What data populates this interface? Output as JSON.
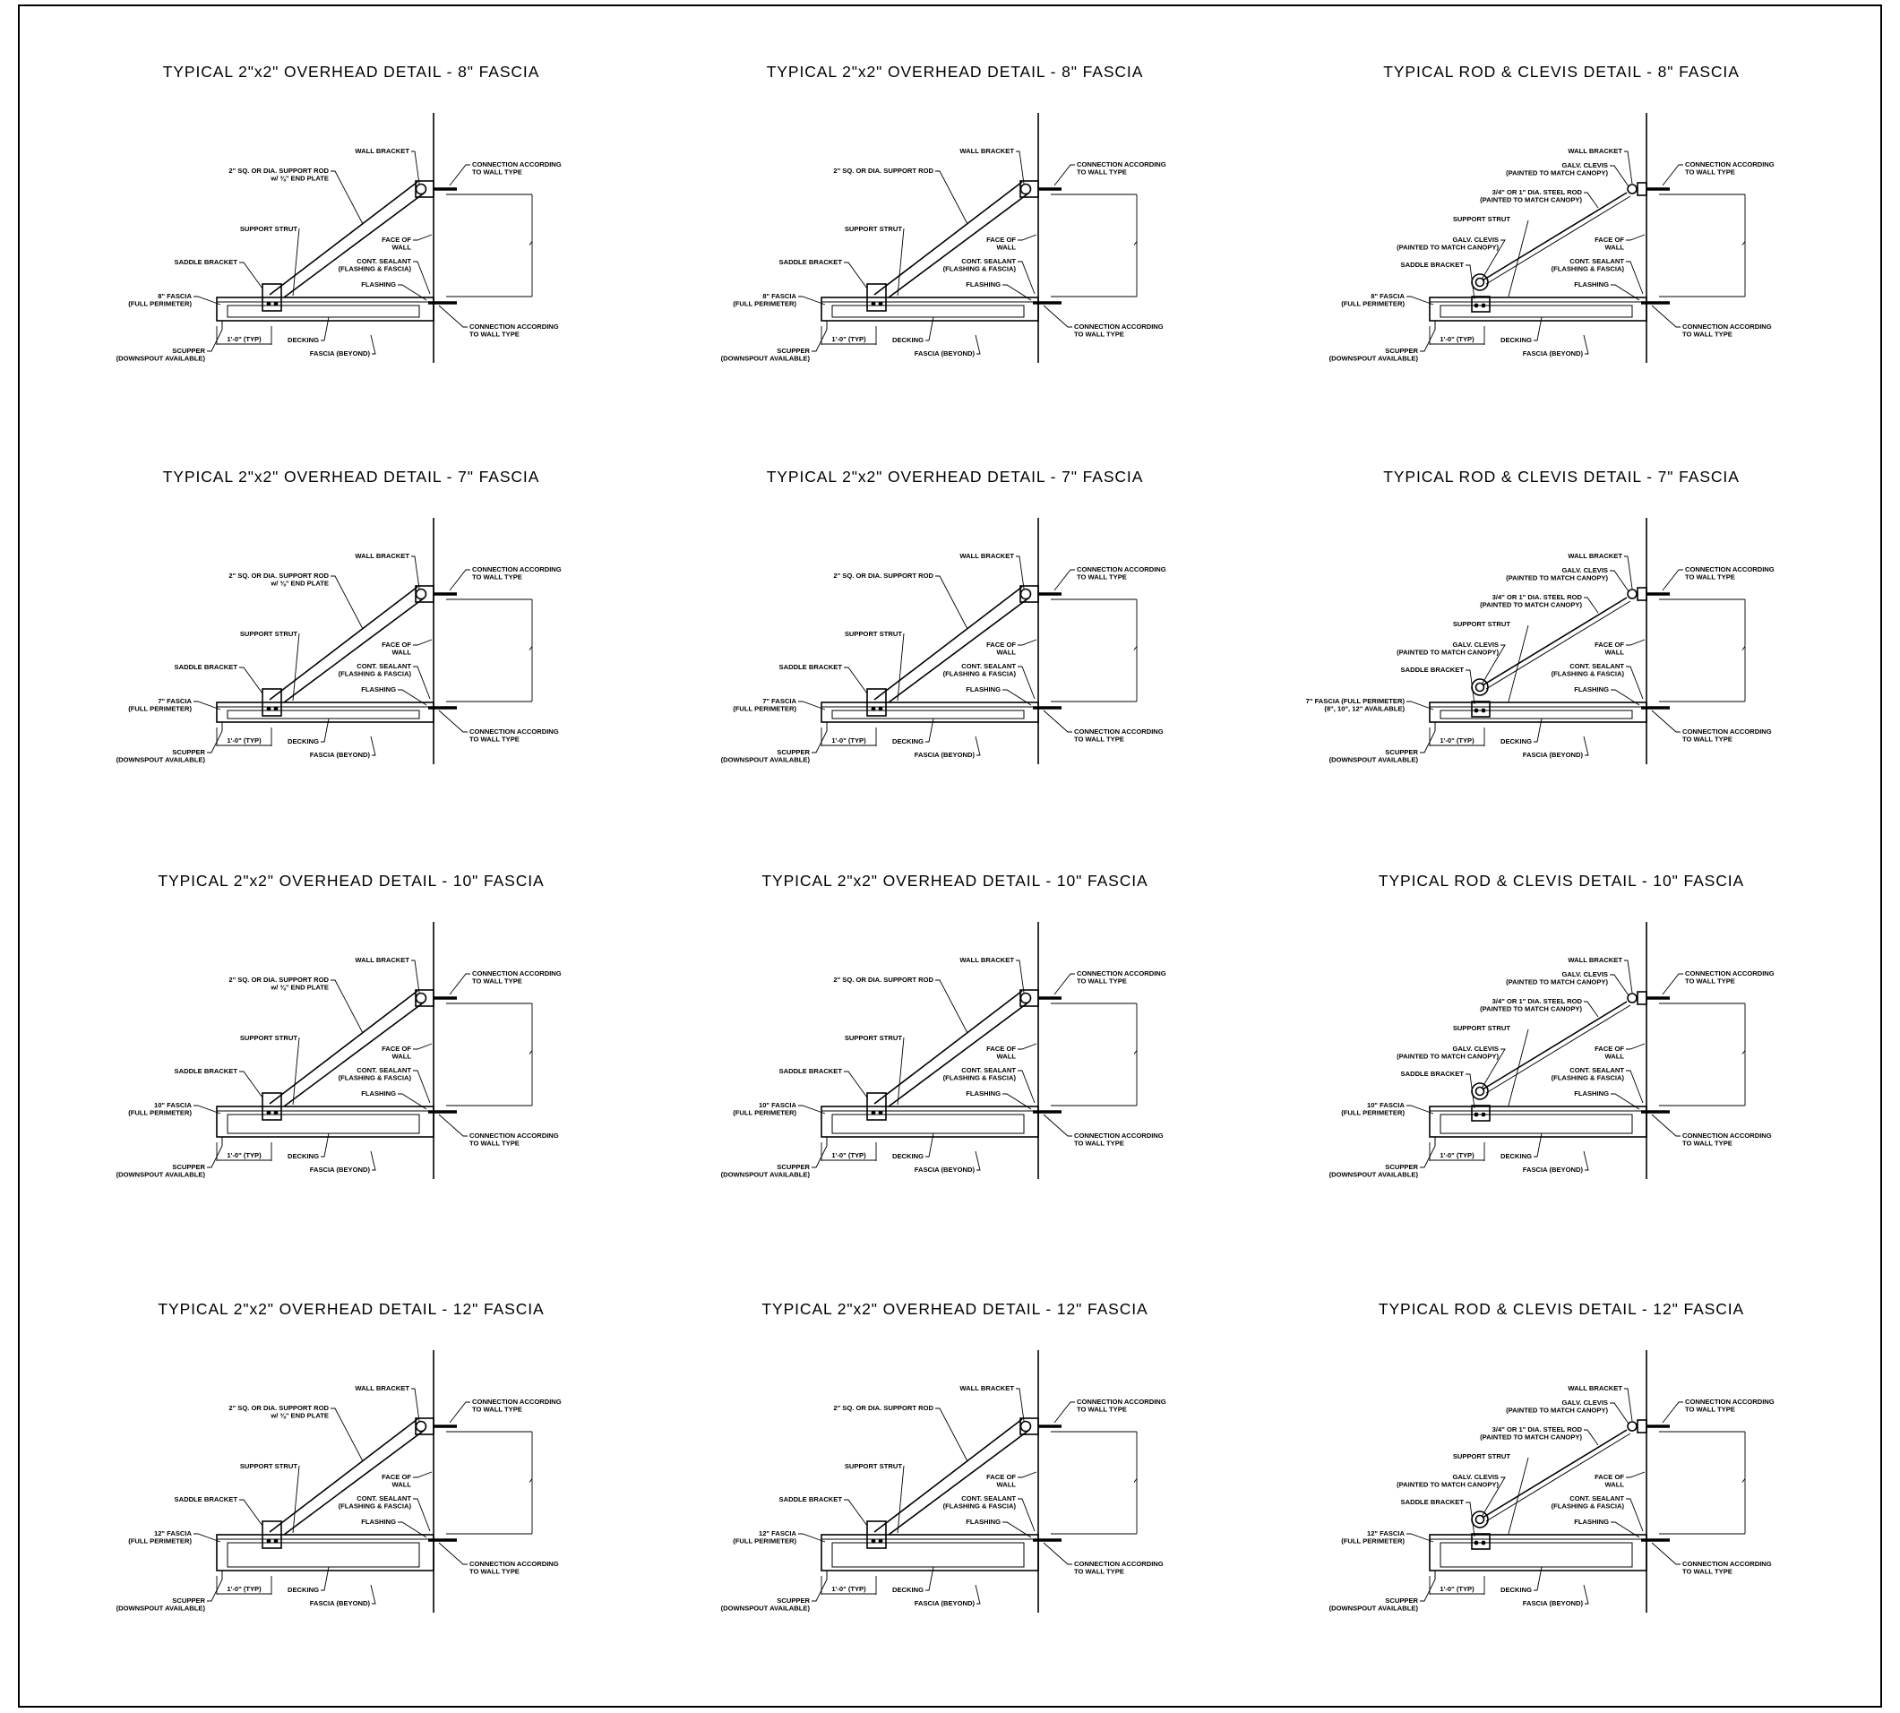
{
  "sheet": {
    "border_color": "#000000",
    "background": "#ffffff",
    "rows": [
      {
        "fascia": "8\"",
        "details": [
          {
            "variant": "overhead",
            "title": "TYPICAL 2\"x2\" OVERHEAD DETAIL - 8\" FASCIA",
            "labels": {
              "wall_bracket": "WALL BRACKET",
              "support_rod": [
                "2\" SQ. OR DIA. SUPPORT ROD",
                "w/ ⅜\" END PLATE"
              ],
              "conn_top": [
                "CONNECTION ACCORDING",
                "TO WALL TYPE"
              ],
              "support_strut": "SUPPORT STRUT",
              "face_of_wall": [
                "FACE OF",
                "WALL"
              ],
              "saddle_bracket": "SADDLE BRACKET",
              "cont_sealant": [
                "CONT. SEALANT",
                "(FLASHING & FASCIA)"
              ],
              "flashing": "FLASHING",
              "fascia": [
                "8\" FASCIA",
                "(FULL PERIMETER)"
              ],
              "conn_bottom": [
                "CONNECTION ACCORDING",
                "TO WALL TYPE"
              ],
              "decking": "DECKING",
              "scupper": [
                "SCUPPER",
                "(DOWNSPOUT AVAILABLE)"
              ],
              "fascia_beyond": "FASCIA (BEYOND)",
              "typ_dim": "1'-0\" (TYP)"
            }
          },
          {
            "variant": "overhead2",
            "title": "TYPICAL 2\"x2\" OVERHEAD DETAIL - 8\" FASCIA",
            "labels": {
              "wall_bracket": "WALL BRACKET",
              "support_rod": [
                "2\" SQ. OR DIA. SUPPORT ROD"
              ],
              "conn_top": [
                "CONNECTION ACCORDING",
                "TO WALL TYPE"
              ],
              "support_strut": "SUPPORT STRUT",
              "face_of_wall": [
                "FACE OF",
                "WALL"
              ],
              "saddle_bracket": "SADDLE BRACKET",
              "cont_sealant": [
                "CONT. SEALANT",
                "(FLASHING & FASCIA)"
              ],
              "flashing": "FLASHING",
              "fascia": [
                "8\" FASCIA",
                "(FULL PERIMETER)"
              ],
              "conn_bottom": [
                "CONNECTION ACCORDING",
                "TO WALL TYPE"
              ],
              "decking": "DECKING",
              "scupper": [
                "SCUPPER",
                "(DOWNSPOUT AVAILABLE)"
              ],
              "fascia_beyond": "FASCIA (BEYOND)",
              "typ_dim": "1'-0\" (TYP)"
            }
          },
          {
            "variant": "clevis",
            "title": "TYPICAL ROD & CLEVIS DETAIL - 8\" FASCIA",
            "labels": {
              "wall_bracket": "WALL BRACKET",
              "galv_clevis_top": [
                "GALV. CLEVIS",
                "(PAINTED TO MATCH CANOPY)"
              ],
              "steel_rod": [
                "3/4\" OR 1\" DIA. STEEL ROD",
                "(PAINTED TO MATCH CANOPY)"
              ],
              "conn_top": [
                "CONNECTION ACCORDING",
                "TO WALL TYPE"
              ],
              "support_strut": "SUPPORT STRUT",
              "face_of_wall": [
                "FACE OF",
                "WALL"
              ],
              "galv_clevis_bottom": [
                "GALV. CLEVIS",
                "(PAINTED TO MATCH CANOPY)"
              ],
              "saddle_bracket": "SADDLE BRACKET",
              "cont_sealant": [
                "CONT. SEALANT",
                "(FLASHING & FASCIA)"
              ],
              "flashing": "FLASHING",
              "fascia": [
                "8\" FASCIA",
                "(FULL PERIMETER)"
              ],
              "conn_bottom": [
                "CONNECTION ACCORDING",
                "TO WALL TYPE"
              ],
              "decking": "DECKING",
              "scupper": [
                "SCUPPER",
                "(DOWNSPOUT AVAILABLE)"
              ],
              "fascia_beyond": "FASCIA (BEYOND)",
              "typ_dim": "1'-0\" (TYP)"
            }
          }
        ]
      },
      {
        "fascia": "7\"",
        "details": [
          {
            "variant": "overhead",
            "title": "TYPICAL 2\"x2\" OVERHEAD DETAIL - 7\" FASCIA",
            "labels": {
              "wall_bracket": "WALL BRACKET",
              "support_rod": [
                "2\" SQ. OR DIA. SUPPORT ROD",
                "w/ ⅜\" END PLATE"
              ],
              "conn_top": [
                "CONNECTION ACCORDING",
                "TO WALL TYPE"
              ],
              "support_strut": "SUPPORT STRUT",
              "face_of_wall": [
                "FACE OF",
                "WALL"
              ],
              "saddle_bracket": "SADDLE BRACKET",
              "cont_sealant": [
                "CONT. SEALANT",
                "(FLASHING & FASCIA)"
              ],
              "flashing": "FLASHING",
              "fascia": [
                "7\" FASCIA",
                "(FULL PERIMETER)"
              ],
              "conn_bottom": [
                "CONNECTION ACCORDING",
                "TO WALL TYPE"
              ],
              "decking": "DECKING",
              "scupper": [
                "SCUPPER",
                "(DOWNSPOUT AVAILABLE)"
              ],
              "fascia_beyond": "FASCIA (BEYOND)",
              "typ_dim": "1'-0\" (TYP)"
            }
          },
          {
            "variant": "overhead2",
            "title": "TYPICAL 2\"x2\" OVERHEAD DETAIL - 7\" FASCIA",
            "labels": {
              "wall_bracket": "WALL BRACKET",
              "support_rod": [
                "2\" SQ. OR DIA. SUPPORT ROD"
              ],
              "conn_top": [
                "CONNECTION ACCORDING",
                "TO WALL TYPE"
              ],
              "support_strut": "SUPPORT STRUT",
              "face_of_wall": [
                "FACE OF",
                "WALL"
              ],
              "saddle_bracket": "SADDLE BRACKET",
              "cont_sealant": [
                "CONT. SEALANT",
                "(FLASHING & FASCIA)"
              ],
              "flashing": "FLASHING",
              "fascia": [
                "7\" FASCIA",
                "(FULL PERIMETER)"
              ],
              "conn_bottom": [
                "CONNECTION ACCORDING",
                "TO WALL TYPE"
              ],
              "decking": "DECKING",
              "scupper": [
                "SCUPPER",
                "(DOWNSPOUT AVAILABLE)"
              ],
              "fascia_beyond": "FASCIA (BEYOND)",
              "typ_dim": "1'-0\" (TYP)"
            }
          },
          {
            "variant": "clevis",
            "title": "TYPICAL ROD & CLEVIS DETAIL - 7\" FASCIA",
            "labels": {
              "wall_bracket": "WALL BRACKET",
              "galv_clevis_top": [
                "GALV. CLEVIS",
                "(PAINTED TO MATCH CANOPY)"
              ],
              "steel_rod": [
                "3/4\" OR 1\" DIA. STEEL ROD",
                "(PAINTED TO MATCH CANOPY)"
              ],
              "conn_top": [
                "CONNECTION ACCORDING",
                "TO WALL TYPE"
              ],
              "support_strut": "SUPPORT STRUT",
              "face_of_wall": [
                "FACE OF",
                "WALL"
              ],
              "galv_clevis_bottom": [
                "GALV. CLEVIS",
                "(PAINTED TO MATCH CANOPY)"
              ],
              "saddle_bracket": "SADDLE BRACKET",
              "cont_sealant": [
                "CONT. SEALANT",
                "(FLASHING & FASCIA)"
              ],
              "flashing": "FLASHING",
              "fascia": [
                "7\" FASCIA (FULL PERIMETER)",
                "(8\", 10\", 12\" AVAILABLE)"
              ],
              "conn_bottom": [
                "CONNECTION ACCORDING",
                "TO WALL TYPE"
              ],
              "decking": "DECKING",
              "scupper": [
                "SCUPPER",
                "(DOWNSPOUT AVAILABLE)"
              ],
              "fascia_beyond": "FASCIA (BEYOND)",
              "typ_dim": "1'-0\" (TYP)"
            }
          }
        ]
      },
      {
        "fascia": "10\"",
        "details": [
          {
            "variant": "overhead",
            "title": "TYPICAL 2\"x2\" OVERHEAD DETAIL - 10\" FASCIA",
            "labels": {
              "wall_bracket": "WALL BRACKET",
              "support_rod": [
                "2\" SQ. OR DIA. SUPPORT ROD",
                "w/ ⅜\" END PLATE"
              ],
              "conn_top": [
                "CONNECTION ACCORDING",
                "TO WALL TYPE"
              ],
              "support_strut": "SUPPORT STRUT",
              "face_of_wall": [
                "FACE OF",
                "WALL"
              ],
              "saddle_bracket": "SADDLE BRACKET",
              "cont_sealant": [
                "CONT. SEALANT",
                "(FLASHING & FASCIA)"
              ],
              "flashing": "FLASHING",
              "fascia": [
                "10\" FASCIA",
                "(FULL PERIMETER)"
              ],
              "conn_bottom": [
                "CONNECTION ACCORDING",
                "TO WALL TYPE"
              ],
              "decking": "DECKING",
              "scupper": [
                "SCUPPER",
                "(DOWNSPOUT AVAILABLE)"
              ],
              "fascia_beyond": "FASCIA (BEYOND)",
              "typ_dim": "1'-0\" (TYP)"
            }
          },
          {
            "variant": "overhead2",
            "title": "TYPICAL 2\"x2\" OVERHEAD DETAIL - 10\" FASCIA",
            "labels": {
              "wall_bracket": "WALL BRACKET",
              "support_rod": [
                "2\" SQ. OR DIA. SUPPORT ROD"
              ],
              "conn_top": [
                "CONNECTION ACCORDING",
                "TO WALL TYPE"
              ],
              "support_strut": "SUPPORT STRUT",
              "face_of_wall": [
                "FACE OF",
                "WALL"
              ],
              "saddle_bracket": "SADDLE BRACKET",
              "cont_sealant": [
                "CONT. SEALANT",
                "(FLASHING & FASCIA)"
              ],
              "flashing": "FLASHING",
              "fascia": [
                "10\" FASCIA",
                "(FULL PERIMETER)"
              ],
              "conn_bottom": [
                "CONNECTION ACCORDING",
                "TO WALL TYPE"
              ],
              "decking": "DECKING",
              "scupper": [
                "SCUPPER",
                "(DOWNSPOUT AVAILABLE)"
              ],
              "fascia_beyond": "FASCIA (BEYOND)",
              "typ_dim": "1'-0\" (TYP)"
            }
          },
          {
            "variant": "clevis",
            "title": "TYPICAL ROD & CLEVIS DETAIL - 10\" FASCIA",
            "labels": {
              "wall_bracket": "WALL BRACKET",
              "galv_clevis_top": [
                "GALV. CLEVIS",
                "(PAINTED TO MATCH CANOPY)"
              ],
              "steel_rod": [
                "3/4\" OR 1\" DIA. STEEL ROD",
                "(PAINTED TO MATCH CANOPY)"
              ],
              "conn_top": [
                "CONNECTION ACCORDING",
                "TO WALL TYPE"
              ],
              "support_strut": "SUPPORT STRUT",
              "face_of_wall": [
                "FACE OF",
                "WALL"
              ],
              "galv_clevis_bottom": [
                "GALV. CLEVIS",
                "(PAINTED TO MATCH CANOPY)"
              ],
              "saddle_bracket": "SADDLE BRACKET",
              "cont_sealant": [
                "CONT. SEALANT",
                "(FLASHING & FASCIA)"
              ],
              "flashing": "FLASHING",
              "fascia": [
                "10\" FASCIA",
                "(FULL PERIMETER)"
              ],
              "conn_bottom": [
                "CONNECTION ACCORDING",
                "TO WALL TYPE"
              ],
              "decking": "DECKING",
              "scupper": [
                "SCUPPER",
                "(DOWNSPOUT AVAILABLE)"
              ],
              "fascia_beyond": "FASCIA (BEYOND)",
              "typ_dim": "1'-0\" (TYP)"
            }
          }
        ]
      },
      {
        "fascia": "12\"",
        "details": [
          {
            "variant": "overhead",
            "title": "TYPICAL 2\"x2\" OVERHEAD DETAIL - 12\" FASCIA",
            "labels": {
              "wall_bracket": "WALL BRACKET",
              "support_rod": [
                "2\" SQ. OR DIA. SUPPORT ROD",
                "w/ ⅜\" END PLATE"
              ],
              "conn_top": [
                "CONNECTION ACCORDING",
                "TO WALL TYPE"
              ],
              "support_strut": "SUPPORT STRUT",
              "face_of_wall": [
                "FACE OF",
                "WALL"
              ],
              "saddle_bracket": "SADDLE BRACKET",
              "cont_sealant": [
                "CONT. SEALANT",
                "(FLASHING & FASCIA)"
              ],
              "flashing": "FLASHING",
              "fascia": [
                "12\" FASCIA",
                "(FULL PERIMETER)"
              ],
              "conn_bottom": [
                "CONNECTION ACCORDING",
                "TO WALL TYPE"
              ],
              "decking": "DECKING",
              "scupper": [
                "SCUPPER",
                "(DOWNSPOUT AVAILABLE)"
              ],
              "fascia_beyond": "FASCIA (BEYOND)",
              "typ_dim": "1'-0\" (TYP)"
            }
          },
          {
            "variant": "overhead2",
            "title": "TYPICAL 2\"x2\" OVERHEAD DETAIL - 12\" FASCIA",
            "labels": {
              "wall_bracket": "WALL BRACKET",
              "support_rod": [
                "2\" SQ. OR DIA. SUPPORT ROD"
              ],
              "conn_top": [
                "CONNECTION ACCORDING",
                "TO WALL TYPE"
              ],
              "support_strut": "SUPPORT STRUT",
              "face_of_wall": [
                "FACE OF",
                "WALL"
              ],
              "saddle_bracket": "SADDLE BRACKET",
              "cont_sealant": [
                "CONT. SEALANT",
                "(FLASHING & FASCIA)"
              ],
              "flashing": "FLASHING",
              "fascia": [
                "12\" FASCIA",
                "(FULL PERIMETER)"
              ],
              "conn_bottom": [
                "CONNECTION ACCORDING",
                "TO WALL TYPE"
              ],
              "decking": "DECKING",
              "scupper": [
                "SCUPPER",
                "(DOWNSPOUT AVAILABLE)"
              ],
              "fascia_beyond": "FASCIA (BEYOND)",
              "typ_dim": "1'-0\" (TYP)"
            }
          },
          {
            "variant": "clevis",
            "title": "TYPICAL ROD & CLEVIS DETAIL - 12\" FASCIA",
            "labels": {
              "wall_bracket": "WALL BRACKET",
              "galv_clevis_top": [
                "GALV. CLEVIS",
                "(PAINTED TO MATCH CANOPY)"
              ],
              "steel_rod": [
                "3/4\" OR 1\" DIA. STEEL ROD",
                "(PAINTED TO MATCH CANOPY)"
              ],
              "conn_top": [
                "CONNECTION ACCORDING",
                "TO WALL TYPE"
              ],
              "support_strut": "SUPPORT STRUT",
              "face_of_wall": [
                "FACE OF",
                "WALL"
              ],
              "galv_clevis_bottom": [
                "GALV. CLEVIS",
                "(PAINTED TO MATCH CANOPY)"
              ],
              "saddle_bracket": "SADDLE BRACKET",
              "cont_sealant": [
                "CONT. SEALANT",
                "(FLASHING & FASCIA)"
              ],
              "flashing": "FLASHING",
              "fascia": [
                "12\" FASCIA",
                "(FULL PERIMETER)"
              ],
              "conn_bottom": [
                "CONNECTION ACCORDING",
                "TO WALL TYPE"
              ],
              "decking": "DECKING",
              "scupper": [
                "SCUPPER",
                "(DOWNSPOUT AVAILABLE)"
              ],
              "fascia_beyond": "FASCIA (BEYOND)",
              "typ_dim": "1'-0\" (TYP)"
            }
          }
        ]
      }
    ]
  }
}
